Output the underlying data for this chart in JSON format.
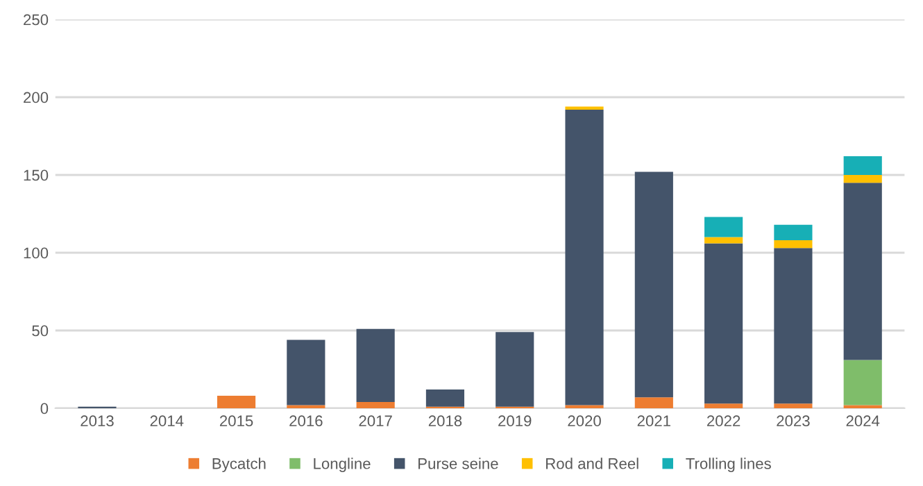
{
  "chart_data": {
    "type": "bar",
    "stacked": true,
    "categories": [
      "2013",
      "2014",
      "2015",
      "2016",
      "2017",
      "2018",
      "2019",
      "2020",
      "2021",
      "2022",
      "2023",
      "2024"
    ],
    "series": [
      {
        "name": "Bycatch",
        "color": "#ed7d31",
        "values": [
          0,
          0,
          8,
          2,
          4,
          1,
          1,
          2,
          7,
          3,
          3,
          2
        ]
      },
      {
        "name": "Longline",
        "color": "#7fbd6a",
        "values": [
          0,
          0,
          0,
          0,
          0,
          0,
          0,
          0,
          0,
          0,
          0,
          29
        ]
      },
      {
        "name": "Purse seine",
        "color": "#44546a",
        "values": [
          1,
          0,
          0,
          42,
          47,
          11,
          48,
          190,
          145,
          103,
          100,
          114
        ]
      },
      {
        "name": "Rod and Reel",
        "color": "#ffc000",
        "values": [
          0,
          0,
          0,
          0,
          0,
          0,
          0,
          2,
          0,
          4,
          5,
          5
        ]
      },
      {
        "name": "Trolling lines",
        "color": "#17afb6",
        "values": [
          0,
          0,
          0,
          0,
          0,
          0,
          0,
          0,
          0,
          13,
          10,
          12
        ]
      }
    ],
    "ylim": [
      0,
      250
    ],
    "yticks": [
      0,
      50,
      100,
      150,
      200,
      250
    ],
    "grid": "y",
    "legend": "bottom"
  }
}
